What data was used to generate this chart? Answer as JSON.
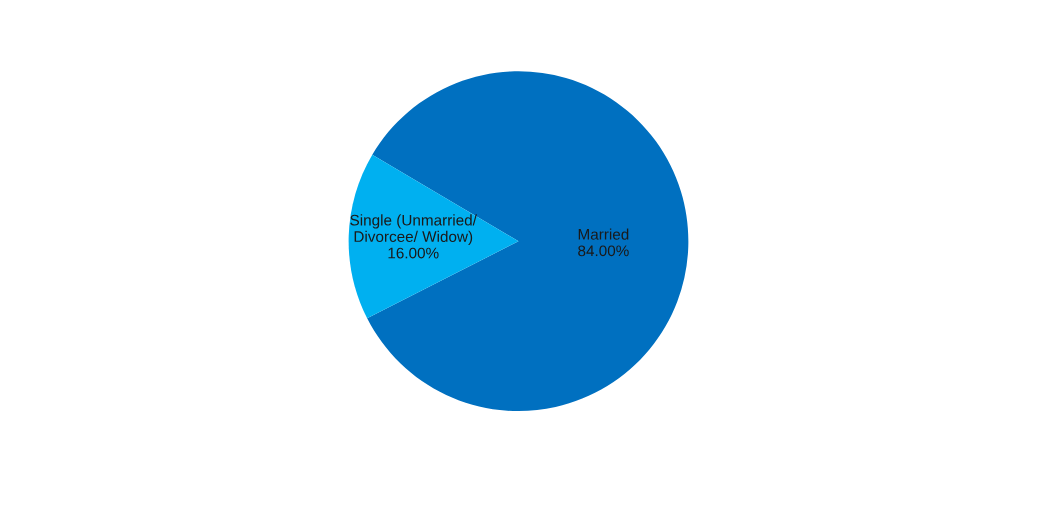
{
  "chart_data": {
    "type": "pie",
    "categories": [
      "Married",
      "Single (Unmarried/\nDivorcee/ Widow)"
    ],
    "values": [
      84,
      16
    ],
    "value_labels": [
      "84.00%",
      "16.00%"
    ],
    "colors": [
      "#0070c0",
      "#00b0f0"
    ],
    "legend": false
  }
}
